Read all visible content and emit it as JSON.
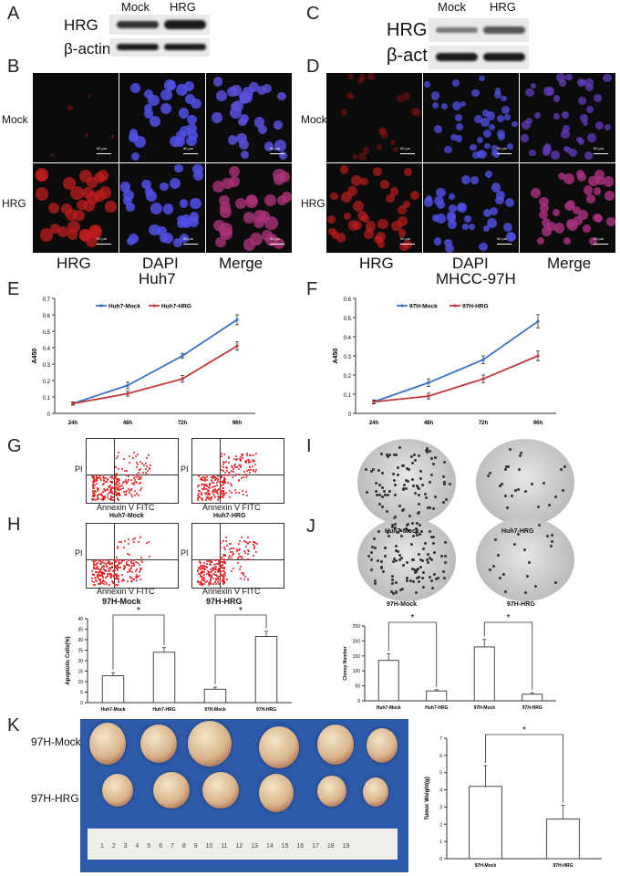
{
  "panels": {
    "A": "A",
    "B": "B",
    "C": "C",
    "D": "D",
    "E": "E",
    "F": "F",
    "G": "G",
    "H": "H",
    "I": "I",
    "J": "J",
    "K": "K"
  },
  "western": {
    "left": {
      "mock": "Mock",
      "hrg": "HRG",
      "row1": "HRG",
      "row2": "β-actin"
    },
    "right": {
      "mock": "Mock",
      "hrg": "HRG",
      "row1": "HRG",
      "row2": "β-actin"
    }
  },
  "if_left": {
    "row1": "Mock",
    "row2": "HRG",
    "col1": "HRG",
    "col2": "DAPI",
    "col3": "Merge",
    "cellline": "Huh7",
    "scale": "50 μm"
  },
  "if_right": {
    "row1": "Mock",
    "row2": "HRG",
    "col1": "HRG",
    "col2": "DAPI",
    "col3": "Merge",
    "cellline": "MHCC-97H",
    "scale": "50 μm"
  },
  "flow": {
    "ylabel": "PI",
    "xlabel": "Annexin V FITC",
    "g_left": "Huh7-Mock",
    "g_right": "Huh7-HRG",
    "h_left": "97H-Mock",
    "h_right": "97H-HRG"
  },
  "colony": {
    "i_left": "Huh7-Mock",
    "i_right": "Huh7-HRG",
    "j_left": "97H-Mock",
    "j_right": "97H-HRG"
  },
  "tumors": {
    "row1": "97H-Mock",
    "row2": "97H-HRG",
    "ruler": "1 2 3 4 5 6 7 8 9 10 11 12 13 14 15 16 17 18 19"
  },
  "chart_data": [
    {
      "id": "E",
      "type": "line",
      "title": "",
      "xlabel": "",
      "ylabel": "A450",
      "categories": [
        "24h",
        "48h",
        "72h",
        "96h"
      ],
      "ylim": [
        0,
        0.7
      ],
      "yticks": [
        "0",
        "0.1",
        "0.2",
        "0.3",
        "0.4",
        "0.5",
        "0.6",
        "0.7"
      ],
      "series": [
        {
          "name": "Huh7-Mock",
          "color": "#3a6fc4",
          "values": [
            0.06,
            0.17,
            0.35,
            0.57
          ],
          "errors": [
            0.01,
            0.02,
            0.015,
            0.03
          ]
        },
        {
          "name": "Huh7-HRG",
          "color": "#c0393b",
          "values": [
            0.06,
            0.12,
            0.21,
            0.41
          ],
          "errors": [
            0.01,
            0.015,
            0.02,
            0.025
          ]
        }
      ]
    },
    {
      "id": "F",
      "type": "line",
      "title": "",
      "xlabel": "",
      "ylabel": "A450",
      "categories": [
        "24h",
        "48h",
        "72h",
        "96h"
      ],
      "ylim": [
        0,
        0.6
      ],
      "yticks": [
        "0",
        "0.1",
        "0.2",
        "0.3",
        "0.4",
        "0.5",
        "0.6"
      ],
      "series": [
        {
          "name": "97H-Mock",
          "color": "#3a6fc4",
          "values": [
            0.06,
            0.16,
            0.28,
            0.48
          ],
          "errors": [
            0.01,
            0.02,
            0.02,
            0.035
          ]
        },
        {
          "name": "97H-HRG",
          "color": "#c0393b",
          "values": [
            0.06,
            0.09,
            0.18,
            0.3
          ],
          "errors": [
            0.01,
            0.015,
            0.02,
            0.025
          ]
        }
      ]
    },
    {
      "id": "H-bar",
      "type": "bar",
      "ylabel": "Apoptotic Cells(%)",
      "categories": [
        "Huh7-Mock",
        "Huh7-HRG",
        "97H-Mock",
        "97H-HRG"
      ],
      "values": [
        12.8,
        24,
        6.4,
        31.5
      ],
      "errors": [
        1.5,
        2.2,
        1,
        2.5
      ],
      "ylim": [
        0,
        40
      ],
      "yticks": [
        "0",
        "5",
        "10",
        "15",
        "20",
        "25",
        "30",
        "35",
        "40"
      ],
      "significance": [
        {
          "pair": [
            0,
            1
          ],
          "label": "*"
        },
        {
          "pair": [
            2,
            3
          ],
          "label": "*"
        }
      ]
    },
    {
      "id": "J-bar",
      "type": "bar",
      "ylabel": "Clonoy Number",
      "categories": [
        "Huh7-Mock",
        "Huh7-HRG",
        "97H-Mock",
        "97H-HRG"
      ],
      "values": [
        135,
        33,
        180,
        22
      ],
      "errors": [
        22,
        4,
        25,
        5
      ],
      "ylim": [
        0,
        250
      ],
      "yticks": [
        "0",
        "50",
        "100",
        "150",
        "200",
        "250"
      ],
      "significance": [
        {
          "pair": [
            0,
            1
          ],
          "label": "*"
        },
        {
          "pair": [
            2,
            3
          ],
          "label": "*"
        }
      ]
    },
    {
      "id": "K-bar",
      "type": "bar",
      "ylabel": "Tumor Weight(g)",
      "categories": [
        "97H-Mock",
        "97H-HRG"
      ],
      "values": [
        4.2,
        2.3
      ],
      "errors": [
        1.2,
        0.8
      ],
      "ylim": [
        0,
        7
      ],
      "yticks": [
        "0",
        "1",
        "2",
        "3",
        "4",
        "5",
        "6",
        "7"
      ],
      "significance": [
        {
          "pair": [
            0,
            1
          ],
          "label": "*"
        }
      ]
    }
  ]
}
